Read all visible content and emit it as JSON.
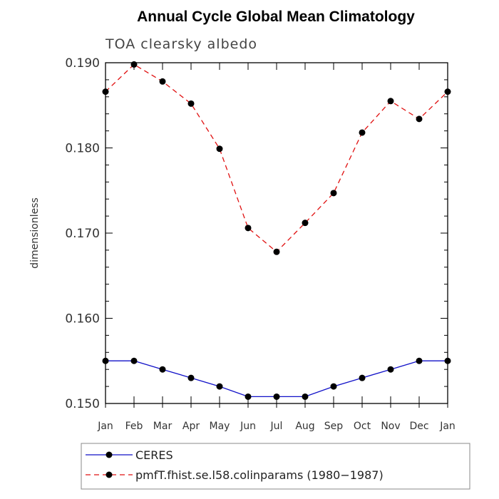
{
  "chart_data": {
    "type": "line",
    "title": "Annual Cycle Global Mean Climatology",
    "subtitle": "TOA clearsky albedo",
    "ylabel": "dimensionless",
    "xlabel": "",
    "categories": [
      "Jan",
      "Feb",
      "Mar",
      "Apr",
      "May",
      "Jun",
      "Jul",
      "Aug",
      "Sep",
      "Oct",
      "Nov",
      "Dec",
      "Jan"
    ],
    "ylim": [
      0.15,
      0.19
    ],
    "yticks": [
      0.15,
      0.16,
      0.17,
      0.18,
      0.19
    ],
    "ytick_labels": [
      "0.150",
      "0.160",
      "0.170",
      "0.180",
      "0.190"
    ],
    "series": [
      {
        "name": "CERES",
        "color": "#1010c8",
        "style": "solid",
        "values": [
          0.155,
          0.155,
          0.154,
          0.153,
          0.152,
          0.1508,
          0.1508,
          0.1508,
          0.152,
          0.153,
          0.154,
          0.155,
          0.155
        ]
      },
      {
        "name": "pmfT.fhist.se.l58.colinparams (1980−1987)",
        "color": "#e01010",
        "style": "dashed",
        "values": [
          0.1866,
          0.1898,
          0.1878,
          0.1852,
          0.1799,
          0.1706,
          0.1678,
          0.1712,
          0.1747,
          0.1818,
          0.1855,
          0.1834,
          0.1866
        ]
      }
    ],
    "marker": "filled-circle",
    "marker_color": "#000000",
    "legend_position": "bottom-left",
    "grid": false
  }
}
